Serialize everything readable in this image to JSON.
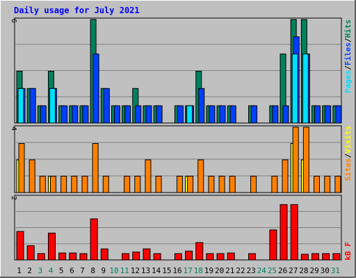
{
  "title": "Daily usage for July 2021",
  "colors": {
    "background": "#c0c0c0",
    "title": "#0000ff",
    "hits": "#00805c",
    "files": "#0040ff",
    "pages": "#00e0ff",
    "visits": "#ff8000",
    "sites": "#ffff00",
    "kbytes": "#ff0000",
    "weekend_label": "#00805c",
    "weekday_label": "#000000",
    "grid": "#808080"
  },
  "chart_data": [
    {
      "type": "bar",
      "panel": "hits_files_pages",
      "ymax_label": "6",
      "ylim": [
        0,
        6
      ],
      "legend": [
        {
          "name": "Pages",
          "color_key": "pages"
        },
        {
          "name": "Files",
          "color_key": "files"
        },
        {
          "name": "Hits",
          "color_key": "hits"
        }
      ],
      "x": [
        1,
        2,
        3,
        4,
        5,
        6,
        7,
        8,
        9,
        10,
        11,
        12,
        13,
        14,
        15,
        16,
        17,
        18,
        19,
        20,
        21,
        22,
        23,
        24,
        25,
        26,
        27,
        28,
        29,
        30,
        31
      ],
      "series": [
        {
          "name": "Hits",
          "values": [
            3,
            2,
            1,
            3,
            1,
            1,
            1,
            6,
            2,
            1,
            1,
            2,
            1,
            1,
            0,
            1,
            1,
            3,
            1,
            1,
            1,
            0,
            1,
            0,
            1,
            4,
            6,
            6,
            1,
            1,
            1
          ]
        },
        {
          "name": "Files",
          "values": [
            2,
            2,
            1,
            2,
            1,
            1,
            1,
            4,
            2,
            1,
            1,
            1,
            1,
            1,
            0,
            1,
            1,
            2,
            1,
            1,
            1,
            0,
            1,
            0,
            1,
            1,
            5,
            4,
            1,
            1,
            1
          ]
        },
        {
          "name": "Pages",
          "values": [
            2,
            0,
            0,
            2,
            0,
            0,
            0,
            0,
            0,
            0,
            0,
            0,
            0,
            0,
            0,
            0,
            1,
            0,
            0,
            0,
            0,
            0,
            0,
            0,
            0,
            0,
            4,
            4,
            0,
            0,
            0
          ]
        }
      ]
    },
    {
      "type": "bar",
      "panel": "sites_visits",
      "ymax_label": "4",
      "ylim": [
        0,
        4
      ],
      "legend": [
        {
          "name": "Sites",
          "color_key": "visits"
        },
        {
          "name": "Visits",
          "color_key": "sites"
        }
      ],
      "x": [
        1,
        2,
        3,
        4,
        5,
        6,
        7,
        8,
        9,
        10,
        11,
        12,
        13,
        14,
        15,
        16,
        17,
        18,
        19,
        20,
        21,
        22,
        23,
        24,
        25,
        26,
        27,
        28,
        29,
        30,
        31
      ],
      "series": [
        {
          "name": "Sites",
          "values": [
            3,
            2,
            1,
            1,
            1,
            1,
            1,
            3,
            1,
            0,
            1,
            1,
            2,
            1,
            0,
            1,
            1,
            2,
            1,
            1,
            1,
            0,
            1,
            0,
            1,
            2,
            4,
            4,
            1,
            1,
            1
          ]
        },
        {
          "name": "Visits",
          "values": [
            2,
            0,
            0,
            1,
            0,
            0,
            0,
            0,
            0,
            0,
            0,
            0,
            0,
            0,
            0,
            0,
            1,
            0,
            0,
            0,
            0,
            0,
            0,
            0,
            0,
            0,
            3,
            2,
            0,
            0,
            0
          ]
        }
      ]
    },
    {
      "type": "bar",
      "panel": "kbytes",
      "ymax_label": "2",
      "ylim": [
        0,
        2
      ],
      "legend": [
        {
          "name": "kB F",
          "color_key": "kbytes"
        }
      ],
      "x": [
        1,
        2,
        3,
        4,
        5,
        6,
        7,
        8,
        9,
        10,
        11,
        12,
        13,
        14,
        15,
        16,
        17,
        18,
        19,
        20,
        21,
        22,
        23,
        24,
        25,
        26,
        27,
        28,
        29,
        30,
        31
      ],
      "series": [
        {
          "name": "kB F",
          "values": [
            0.9,
            0.45,
            0.2,
            0.85,
            0.22,
            0.22,
            0.2,
            1.3,
            0.35,
            0.0,
            0.2,
            0.25,
            0.35,
            0.2,
            0.0,
            0.2,
            0.28,
            0.55,
            0.2,
            0.2,
            0.22,
            0.0,
            0.2,
            0.0,
            0.95,
            1.75,
            1.75,
            0.18,
            0.2,
            0.2,
            0.2
          ]
        }
      ]
    }
  ],
  "days": [
    1,
    2,
    3,
    4,
    5,
    6,
    7,
    8,
    9,
    10,
    11,
    12,
    13,
    14,
    15,
    16,
    17,
    18,
    19,
    20,
    21,
    22,
    23,
    24,
    25,
    26,
    27,
    28,
    29,
    30,
    31
  ],
  "weekend_days": [
    3,
    4,
    10,
    11,
    17,
    18,
    24,
    25,
    31
  ]
}
